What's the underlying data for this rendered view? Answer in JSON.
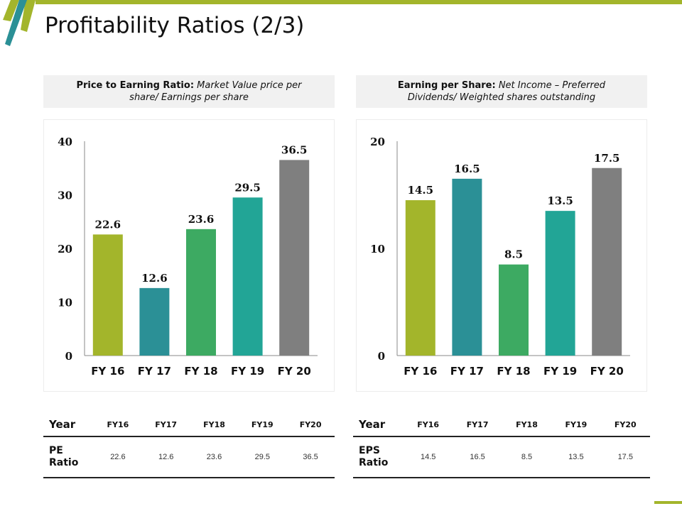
{
  "header": {
    "title": "Profitability Ratios (2/3)"
  },
  "colors": {
    "accent_green": "#a3b52b",
    "accent_teal": "#2b9096",
    "bar_colors": [
      "#a3b52b",
      "#2b9096",
      "#3daa62",
      "#22a596",
      "#7f7f7f"
    ]
  },
  "formulas": {
    "pe": {
      "label": "Price to Earning Ratio:",
      "line1": "Market Value price per",
      "line2": "share/ Earnings per share"
    },
    "eps": {
      "label": "Earning per Share:",
      "line1": "Net Income – Preferred",
      "line2": "Dividends/ Weighted shares outstanding"
    }
  },
  "chart_data": [
    {
      "type": "bar",
      "title": "Price to Earning Ratio",
      "categories": [
        "FY 16",
        "FY 17",
        "FY 18",
        "FY 19",
        "FY 20"
      ],
      "values": [
        22.6,
        12.6,
        23.6,
        29.5,
        36.5
      ],
      "value_labels": [
        "22.6",
        "12.6",
        "23.6",
        "29.5",
        "36.5"
      ],
      "yticks": [
        "0",
        "10",
        "20",
        "30",
        "40"
      ],
      "ytick_values": [
        0,
        10,
        20,
        30,
        40
      ],
      "ylim": [
        0,
        40
      ],
      "xlabel": "",
      "ylabel": "",
      "grid": false,
      "legend": "none"
    },
    {
      "type": "bar",
      "title": "Earning per Share",
      "categories": [
        "FY 16",
        "FY 17",
        "FY 18",
        "FY 19",
        "FY 20"
      ],
      "values": [
        14.5,
        16.5,
        8.5,
        13.5,
        17.5
      ],
      "value_labels": [
        "14.5",
        "16.5",
        "8.5",
        "13.5",
        "17.5"
      ],
      "yticks": [
        "0",
        "10",
        "20"
      ],
      "ytick_values": [
        0,
        10,
        20
      ],
      "ylim": [
        0,
        20
      ],
      "xlabel": "",
      "ylabel": "",
      "grid": false,
      "legend": "none"
    }
  ],
  "tables": {
    "pe": {
      "header": [
        "Year",
        "FY16",
        "FY17",
        "FY18",
        "FY19",
        "FY20"
      ],
      "row_label_1": "PE",
      "row_label_2": "Ratio",
      "values": [
        "22.6",
        "12.6",
        "23.6",
        "29.5",
        "36.5"
      ]
    },
    "eps": {
      "header": [
        "Year",
        "FY16",
        "FY17",
        "FY18",
        "FY19",
        "FY20"
      ],
      "row_label_1": "EPS",
      "row_label_2": "Ratio",
      "values": [
        "14.5",
        "16.5",
        "8.5",
        "13.5",
        "17.5"
      ]
    }
  }
}
